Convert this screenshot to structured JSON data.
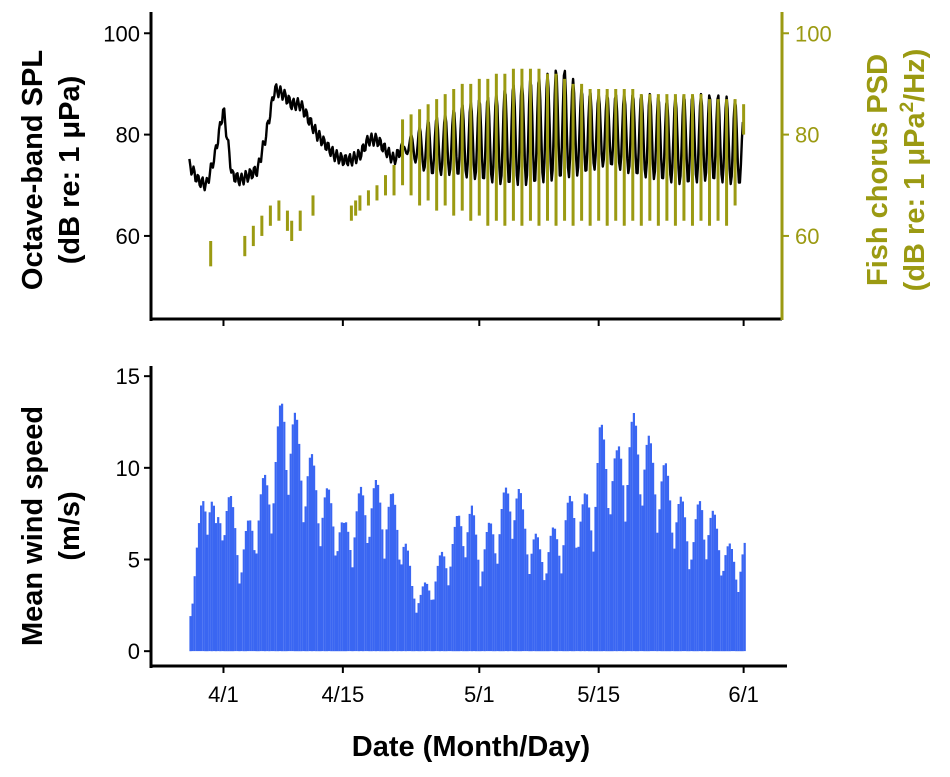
{
  "colors": {
    "spl": "#000000",
    "fish": "#9b9a12",
    "wind": "#3a66f2",
    "axis": "#000000"
  },
  "chart_data": [
    {
      "type": "line",
      "xlabel": "Date (Month/Day)",
      "ylabel_lines": [
        "Octave-band SPL",
        "(dB re: 1 μPa)"
      ],
      "y2label_line1": "Fish chorus PSD",
      "y2label_line2_prefix": "(dB re: 1 μPa",
      "y2label_sup": "2",
      "y2label_line2_suffix": "/Hz)",
      "x_ticks": [
        {
          "label": "4/1",
          "day": 32
        },
        {
          "label": "4/15",
          "day": 46
        },
        {
          "label": "5/1",
          "day": 62
        },
        {
          "label": "5/15",
          "day": 76
        },
        {
          "label": "6/1",
          "day": 93
        }
      ],
      "xlim_days": [
        23.5,
        97.5
      ],
      "ylim": [
        44,
        104
      ],
      "y_ticks": [
        {
          "label": "60",
          "value": 60
        },
        {
          "label": "80",
          "value": 80
        },
        {
          "label": "100",
          "value": 100
        }
      ],
      "y2lim": [
        44,
        104
      ],
      "y2_ticks": [
        {
          "label": "60",
          "value": 60
        },
        {
          "label": "80",
          "value": 80
        },
        {
          "label": "100",
          "value": 100
        }
      ],
      "series": [
        {
          "key": "spl",
          "x_day_range": [
            28.0,
            93.0
          ],
          "points": [
            [
              28.0,
              74
            ],
            [
              29.0,
              71
            ],
            [
              30.0,
              70
            ],
            [
              31.0,
              76
            ],
            [
              32.0,
              85
            ],
            [
              33.0,
              72
            ],
            [
              34.0,
              71
            ],
            [
              35.0,
              72
            ],
            [
              36.0,
              73
            ],
            [
              37.0,
              80
            ],
            [
              38.0,
              89
            ],
            [
              39.0,
              88
            ],
            [
              40.0,
              86
            ],
            [
              41.0,
              86
            ],
            [
              42.0,
              83
            ],
            [
              43.0,
              80
            ],
            [
              44.0,
              78
            ],
            [
              45.0,
              76
            ],
            [
              46.0,
              75
            ],
            [
              47.0,
              75
            ],
            [
              48.0,
              76
            ],
            [
              49.0,
              79
            ],
            [
              50.0,
              79
            ],
            [
              51.0,
              77
            ],
            [
              52.0,
              75
            ],
            [
              54.0,
              80
            ],
            [
              56.0,
              83
            ],
            [
              58.0,
              84
            ],
            [
              60.0,
              86
            ],
            [
              62.0,
              87
            ],
            [
              64.0,
              88
            ],
            [
              66.0,
              90
            ],
            [
              68.0,
              91
            ],
            [
              70.0,
              92
            ],
            [
              71.0,
              93
            ],
            [
              72.0,
              93
            ],
            [
              73.0,
              91
            ],
            [
              74.0,
              89
            ],
            [
              76.0,
              88
            ],
            [
              78.0,
              88
            ],
            [
              80.0,
              88
            ],
            [
              82.0,
              88
            ],
            [
              84.0,
              87
            ],
            [
              86.0,
              88
            ],
            [
              88.0,
              88
            ],
            [
              90.0,
              88
            ],
            [
              92.0,
              87
            ],
            [
              93.0,
              83
            ]
          ],
          "lows": [
            [
              53.0,
              77
            ],
            [
              56.0,
              72
            ],
            [
              59.0,
              72
            ],
            [
              62.0,
              71
            ],
            [
              65.0,
              70
            ],
            [
              68.0,
              70
            ],
            [
              71.0,
              71
            ],
            [
              74.0,
              72
            ],
            [
              77.0,
              74
            ],
            [
              80.0,
              72
            ],
            [
              83.0,
              71
            ],
            [
              86.0,
              70
            ],
            [
              89.0,
              71
            ],
            [
              92.0,
              70
            ]
          ]
        },
        {
          "key": "fish",
          "segments": [
            [
              30.5,
              54,
              59
            ],
            [
              34.5,
              56,
              60
            ],
            [
              35.5,
              58,
              62
            ],
            [
              36.5,
              60,
              64
            ],
            [
              37.5,
              62,
              66
            ],
            [
              38.5,
              63,
              67
            ],
            [
              39.5,
              61,
              65
            ],
            [
              40.0,
              59,
              63
            ],
            [
              41.0,
              61,
              65
            ],
            [
              42.5,
              64,
              68
            ],
            [
              47.0,
              63,
              66
            ],
            [
              47.5,
              64,
              67
            ],
            [
              48.0,
              65,
              68
            ],
            [
              49.0,
              66,
              69
            ],
            [
              50.0,
              67,
              70
            ],
            [
              51.0,
              68,
              72
            ],
            [
              52.0,
              68,
              74
            ],
            [
              53.0,
              70,
              83
            ],
            [
              54.0,
              68,
              84
            ],
            [
              55.0,
              66,
              85
            ],
            [
              56.0,
              67,
              86
            ],
            [
              57.0,
              65,
              87
            ],
            [
              58.0,
              66,
              88
            ],
            [
              59.0,
              64,
              89
            ],
            [
              60.0,
              65,
              90
            ],
            [
              61.0,
              63,
              90
            ],
            [
              62.0,
              64,
              91
            ],
            [
              63.0,
              62,
              91
            ],
            [
              64.0,
              63,
              92
            ],
            [
              65.0,
              62,
              92
            ],
            [
              66.0,
              63,
              93
            ],
            [
              67.0,
              62,
              93
            ],
            [
              68.0,
              63,
              93
            ],
            [
              69.0,
              62,
              93
            ],
            [
              70.0,
              63,
              92
            ],
            [
              71.0,
              62,
              92
            ],
            [
              72.0,
              63,
              91
            ],
            [
              73.0,
              62,
              90
            ],
            [
              74.0,
              63,
              90
            ],
            [
              75.0,
              62,
              89
            ],
            [
              76.0,
              63,
              89
            ],
            [
              77.0,
              62,
              89
            ],
            [
              78.0,
              63,
              89
            ],
            [
              79.0,
              62,
              89
            ],
            [
              80.0,
              63,
              89
            ],
            [
              81.0,
              62,
              88
            ],
            [
              82.0,
              63,
              88
            ],
            [
              83.0,
              62,
              88
            ],
            [
              84.0,
              63,
              88
            ],
            [
              85.0,
              62,
              88
            ],
            [
              86.0,
              63,
              88
            ],
            [
              87.0,
              62,
              88
            ],
            [
              88.0,
              63,
              88
            ],
            [
              89.0,
              62,
              87
            ],
            [
              90.0,
              63,
              87
            ],
            [
              91.0,
              62,
              87
            ],
            [
              92.0,
              66,
              87
            ],
            [
              93.0,
              80,
              86
            ]
          ]
        }
      ]
    },
    {
      "type": "bar",
      "xlabel": "Date (Month/Day)",
      "ylabel_lines": [
        "Mean wind speed",
        "(m/s)"
      ],
      "x_ticks": [
        {
          "label": "4/1",
          "day": 32
        },
        {
          "label": "4/15",
          "day": 46
        },
        {
          "label": "5/1",
          "day": 62
        },
        {
          "label": "5/15",
          "day": 76
        },
        {
          "label": "6/1",
          "day": 93
        }
      ],
      "xlim_days": [
        23.5,
        97.5
      ],
      "ylim": [
        -0.7,
        15.5
      ],
      "y_ticks": [
        {
          "label": "0",
          "value": 0
        },
        {
          "label": "5",
          "value": 5
        },
        {
          "label": "10",
          "value": 10
        },
        {
          "label": "15",
          "value": 15
        }
      ],
      "series": [
        {
          "key": "wind",
          "x_day_range": [
            28.0,
            93.0
          ],
          "peaks": [
            [
              28.0,
              3
            ],
            [
              29.0,
              7
            ],
            [
              30.0,
              11.5
            ],
            [
              31.0,
              7
            ],
            [
              32.0,
              10
            ],
            [
              33.0,
              8
            ],
            [
              34.0,
              6
            ],
            [
              35.0,
              7.5
            ],
            [
              36.0,
              9
            ],
            [
              37.0,
              10
            ],
            [
              38.0,
              12
            ],
            [
              39.0,
              14.8
            ],
            [
              40.0,
              13.5
            ],
            [
              41.0,
              12
            ],
            [
              42.0,
              11
            ],
            [
              43.0,
              10
            ],
            [
              44.0,
              9
            ],
            [
              45.0,
              8.5
            ],
            [
              46.0,
              7
            ],
            [
              47.0,
              8
            ],
            [
              48.0,
              9
            ],
            [
              49.0,
              9.5
            ],
            [
              50.0,
              9.3
            ],
            [
              51.0,
              9
            ],
            [
              52.0,
              8.5
            ],
            [
              53.0,
              7
            ],
            [
              54.0,
              4
            ],
            [
              55.0,
              3.5
            ],
            [
              56.0,
              4
            ],
            [
              57.0,
              5
            ],
            [
              58.0,
              6
            ],
            [
              59.0,
              7
            ],
            [
              60.0,
              8.5
            ],
            [
              61.0,
              8
            ],
            [
              62.0,
              6
            ],
            [
              63.0,
              7
            ],
            [
              64.0,
              8
            ],
            [
              65.0,
              9
            ],
            [
              66.0,
              10.5
            ],
            [
              67.0,
              8
            ],
            [
              68.0,
              7
            ],
            [
              69.0,
              6
            ],
            [
              70.0,
              6.5
            ],
            [
              71.0,
              7
            ],
            [
              72.0,
              8
            ],
            [
              73.0,
              9
            ],
            [
              74.0,
              8.5
            ],
            [
              75.0,
              9
            ],
            [
              76.0,
              12.5
            ],
            [
              77.0,
              12
            ],
            [
              78.0,
              11
            ],
            [
              79.0,
              12.5
            ],
            [
              80.0,
              13
            ],
            [
              81.0,
              12.8
            ],
            [
              82.0,
              11.5
            ],
            [
              83.0,
              11
            ],
            [
              84.0,
              10
            ],
            [
              85.0,
              9
            ],
            [
              86.0,
              8
            ],
            [
              87.0,
              7
            ],
            [
              88.0,
              9
            ],
            [
              89.0,
              8
            ],
            [
              90.0,
              7
            ],
            [
              91.0,
              6
            ],
            [
              92.0,
              5.5
            ],
            [
              93.0,
              6
            ]
          ]
        }
      ]
    }
  ]
}
